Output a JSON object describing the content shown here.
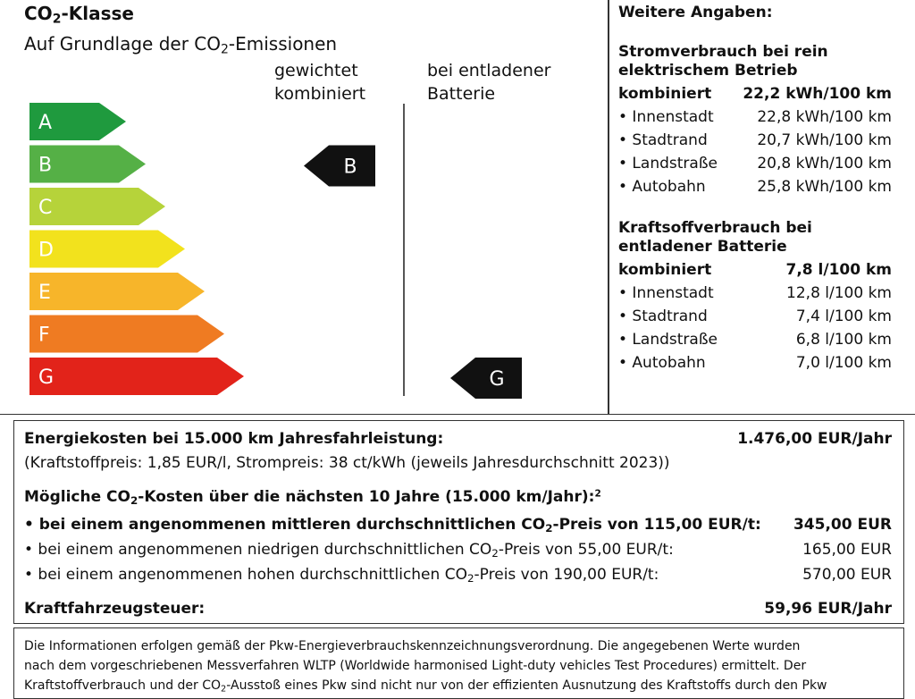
{
  "class_box": {
    "title_prefix": "CO",
    "title_sub": "2",
    "title_suffix": "-Klasse",
    "subtitle_prefix": "Auf Grundlage der CO",
    "subtitle_sub": "2",
    "subtitle_suffix": "-Emissionen",
    "col1_line1": "gewichtet",
    "col1_line2": "kombiniert",
    "col2_line1": "bei entladener",
    "col2_line2": "Batterie",
    "scale": [
      {
        "letter": "A",
        "color": "#1f9a3e"
      },
      {
        "letter": "B",
        "color": "#55b046"
      },
      {
        "letter": "C",
        "color": "#b6d33a"
      },
      {
        "letter": "D",
        "color": "#f2e21d"
      },
      {
        "letter": "E",
        "color": "#f7b52a"
      },
      {
        "letter": "F",
        "color": "#ef7b22"
      },
      {
        "letter": "G",
        "color": "#e2231a"
      }
    ],
    "weighted_class": "B",
    "discharged_class": "G"
  },
  "further": {
    "heading": "Weitere Angaben:",
    "electric_heading_line1": "Stromverbrauch bei rein",
    "electric_heading_line2": "elektrischem Betrieb",
    "electric_combined_label": "kombiniert",
    "electric_combined_value": "22,2 kWh/100 km",
    "electric_rows": [
      {
        "label": "• Innenstadt",
        "value": "22,8 kWh/100 km"
      },
      {
        "label": "• Stadtrand",
        "value": "20,7 kWh/100 km"
      },
      {
        "label": "• Landstraße",
        "value": "20,8 kWh/100 km"
      },
      {
        "label": "• Autobahn",
        "value": "25,8 kWh/100 km"
      }
    ],
    "fuel_heading_line1": "Kraftsoffverbrauch bei",
    "fuel_heading_line2": "entladener Batterie",
    "fuel_combined_label": "kombiniert",
    "fuel_combined_value": "7,8 l/100 km",
    "fuel_rows": [
      {
        "label": "• Innenstadt",
        "value": "12,8 l/100 km"
      },
      {
        "label": "• Stadtrand",
        "value": "7,4 l/100 km"
      },
      {
        "label": "• Landstraße",
        "value": "6,8 l/100 km"
      },
      {
        "label": "• Autobahn",
        "value": "7,0 l/100 km"
      }
    ]
  },
  "costs": {
    "energy_label": "Energiekosten bei 15.000 km Jahresfahrleistung:",
    "energy_value": "1.476,00 EUR/Jahr",
    "energy_note": "(Kraftstoffpreis: 1,85 EUR/l, Strompreis: 38 ct/kWh (jeweils Jahresdurchschnitt 2023))",
    "co2_heading_prefix": "Mögliche CO",
    "co2_heading_sub": "2",
    "co2_heading_suffix": "-Kosten über die nächsten 10 Jahre (15.000 km/Jahr):",
    "co2_heading_sup": "2",
    "mid_prefix": "• bei einem angenommenen mittleren durchschnittlichen CO",
    "mid_sub": "2",
    "mid_suffix": "-Preis von 115,00 EUR/t:",
    "mid_value": "345,00 EUR",
    "low_prefix": "• bei einem angenommenen niedrigen durchschnittlichen CO",
    "low_sub": "2",
    "low_suffix": "-Preis von 55,00 EUR/t:",
    "low_value": "165,00 EUR",
    "high_prefix": "• bei einem angenommenen hohen durchschnittlichen CO",
    "high_sub": "2",
    "high_suffix": "-Preis von 190,00 EUR/t:",
    "high_value": "570,00 EUR",
    "tax_label": "Kraftfahrzeugsteuer:",
    "tax_value": "59,96 EUR/Jahr"
  },
  "footer": {
    "line1": "Die Informationen erfolgen gemäß der Pkw-Energieverbrauchskennzeichnungsverordnung. Die angegebenen Werte wurden",
    "line2": "nach dem vorgeschriebenen Messverfahren WLTP (Worldwide harmonised Light-duty vehicles Test Procedures) ermittelt. Der",
    "line3_prefix": "Kraftstoffverbrauch und der CO",
    "line3_sub": "2",
    "line3_suffix": "-Ausstoß eines Pkw sind nicht nur von der effizienten Ausnutzung des Kraftstoffs durch den Pkw"
  }
}
